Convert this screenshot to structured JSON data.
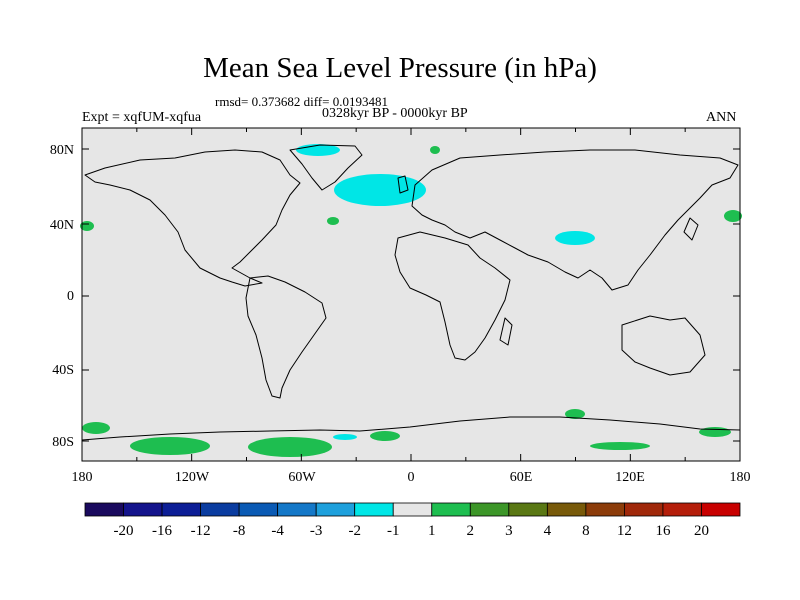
{
  "title": "Mean Sea Level Pressure (in hPa)",
  "stats": "rmsd= 0.373682 diff= 0.0193481",
  "expt": "Expt = xqfUM-xqfua",
  "period": "0328kyr BP - 0000kyr BP",
  "season": "ANN",
  "lat_labels": [
    "80N",
    "40N",
    "0",
    "40S",
    "80S"
  ],
  "lon_labels": [
    "180",
    "120W",
    "60W",
    "0",
    "60E",
    "120E",
    "180"
  ],
  "colorbar": {
    "labels": [
      "-20",
      "-16",
      "-12",
      "-8",
      "-4",
      "-3",
      "-2",
      "-1",
      "1",
      "2",
      "3",
      "4",
      "8",
      "12",
      "16",
      "20"
    ],
    "colors": [
      "#1a0a5e",
      "#14148c",
      "#0c1e96",
      "#0a3ca0",
      "#0a5ab4",
      "#1478c8",
      "#1ea0dc",
      "#00e6e6",
      "#e6e6e6",
      "#1ebe50",
      "#3c9628",
      "#5a7814",
      "#785a0a",
      "#8c3c0a",
      "#a0280a",
      "#b41e0a",
      "#c80000"
    ]
  },
  "colors": {
    "background": "#e6e6e6",
    "coast": "#000000",
    "negative": "#00e6e6",
    "positive": "#1ebe50"
  }
}
